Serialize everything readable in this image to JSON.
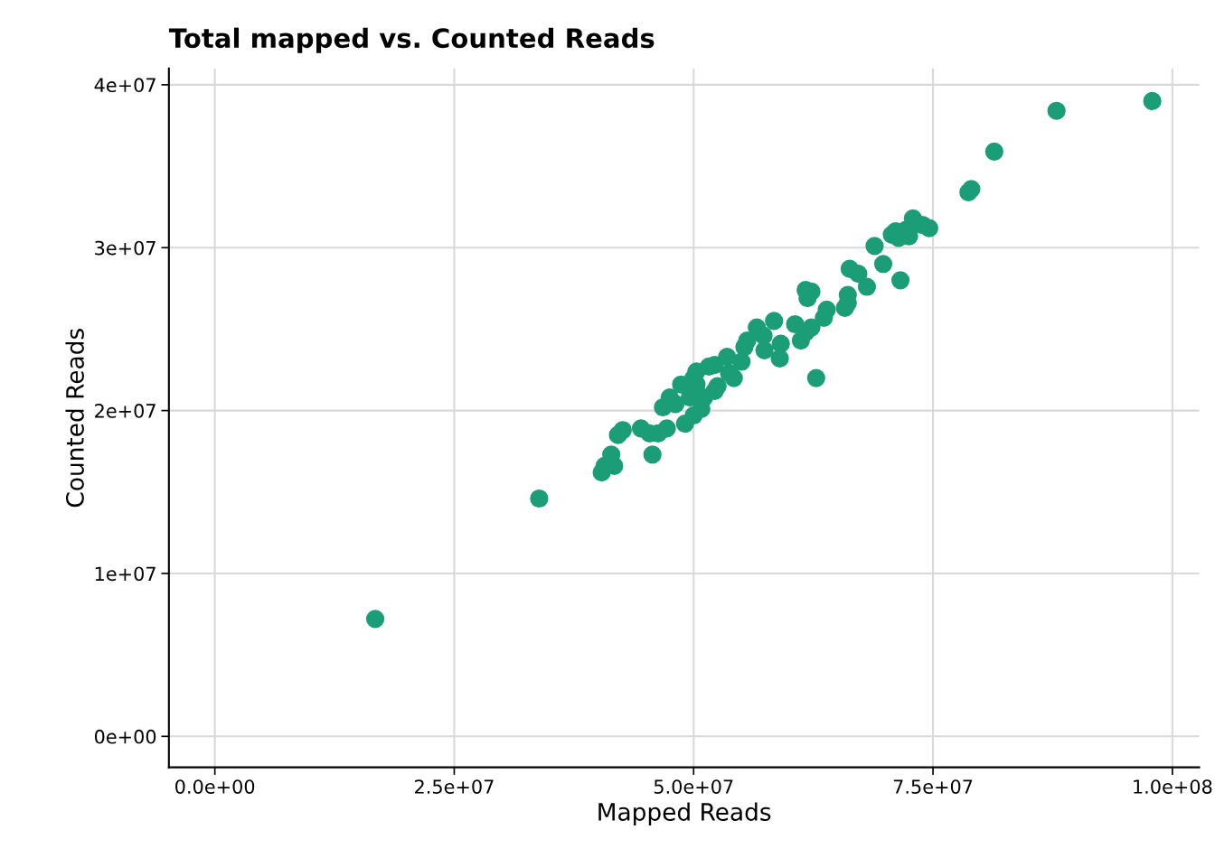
{
  "chart_data": {
    "type": "scatter",
    "title": "Total mapped vs. Counted Reads",
    "xlabel": "Mapped Reads",
    "ylabel": "Counted Reads",
    "x": [
      16750000.0,
      33870000.0,
      40400000.0,
      40700000.0,
      41700000.0,
      41400000.0,
      42100000.0,
      42600000.0,
      44500000.0,
      45700000.0,
      45400000.0,
      46300000.0,
      47200000.0,
      46800000.0,
      47500000.0,
      48100000.0,
      49100000.0,
      50000000.0,
      49600000.0,
      50000000.0,
      50800000.0,
      51100000.0,
      51600000.0,
      52200000.0,
      52500000.0,
      52200000.0,
      53700000.0,
      54200000.0,
      53500000.0,
      55000000.0,
      55300000.0,
      55600000.0,
      56600000.0,
      57400000.0,
      57300000.0,
      58400000.0,
      59100000.0,
      59000000.0,
      60600000.0,
      61200000.0,
      61700000.0,
      62300000.0,
      61700000.0,
      61900000.0,
      62300000.0,
      62800000.0,
      63600000.0,
      63900000.0,
      65800000.0,
      66100000.0,
      66100000.0,
      66300000.0,
      67200000.0,
      68100000.0,
      68900000.0,
      69800000.0,
      71600000.0,
      70700000.0,
      71100000.0,
      71400000.0,
      72500000.0,
      72200000.0,
      72900000.0,
      73900000.0,
      74600000.0,
      78700000.0,
      79000000.0,
      81400000.0,
      87900000.0,
      97900000.0,
      48700000.0,
      50300000.0,
      50300000.0
    ],
    "series": [
      {
        "color": "#1b9e77",
        "values": [
          7200000.0,
          14600000.0,
          16200000.0,
          16600000.0,
          16600000.0,
          17300000.0,
          18500000.0,
          18800000.0,
          18900000.0,
          17300000.0,
          18600000.0,
          18600000.0,
          18900000.0,
          20200000.0,
          20800000.0,
          20400000.0,
          19200000.0,
          19700000.0,
          20800000.0,
          22000000.0,
          20100000.0,
          20800000.0,
          22700000.0,
          21200000.0,
          21500000.0,
          22800000.0,
          22300000.0,
          22000000.0,
          23300000.0,
          23000000.0,
          23900000.0,
          24300000.0,
          25100000.0,
          23700000.0,
          24600000.0,
          25500000.0,
          24100000.0,
          23200000.0,
          25300000.0,
          24300000.0,
          24800000.0,
          25100000.0,
          27400000.0,
          26900000.0,
          27300000.0,
          22000000.0,
          25700000.0,
          26200000.0,
          26300000.0,
          27100000.0,
          26600000.0,
          28700000.0,
          28400000.0,
          27600000.0,
          30100000.0,
          29000000.0,
          28000000.0,
          30800000.0,
          31000000.0,
          30600000.0,
          30700000.0,
          31100000.0,
          31800000.0,
          31400000.0,
          31200000.0,
          33400000.0,
          33600000.0,
          35900000.0,
          38400000.0,
          39000000.0,
          21600000.0,
          21600000.0,
          22400000.0
        ]
      }
    ],
    "xlim": [
      -4800000.0,
      102800000.0
    ],
    "ylim": [
      -1900000.0,
      41000000.0
    ],
    "xticks": [
      {
        "value": 0,
        "label": "0.0e+00"
      },
      {
        "value": 25000000.0,
        "label": "2.5e+07"
      },
      {
        "value": 50000000.0,
        "label": "5.0e+07"
      },
      {
        "value": 75000000.0,
        "label": "7.5e+07"
      },
      {
        "value": 100000000.0,
        "label": "1.0e+08"
      }
    ],
    "yticks": [
      {
        "value": 0,
        "label": "0e+00"
      },
      {
        "value": 10000000.0,
        "label": "1e+07"
      },
      {
        "value": 20000000.0,
        "label": "2e+07"
      },
      {
        "value": 30000000.0,
        "label": "3e+07"
      },
      {
        "value": 40000000.0,
        "label": "4e+07"
      }
    ],
    "grid": true,
    "marker": "circle"
  }
}
